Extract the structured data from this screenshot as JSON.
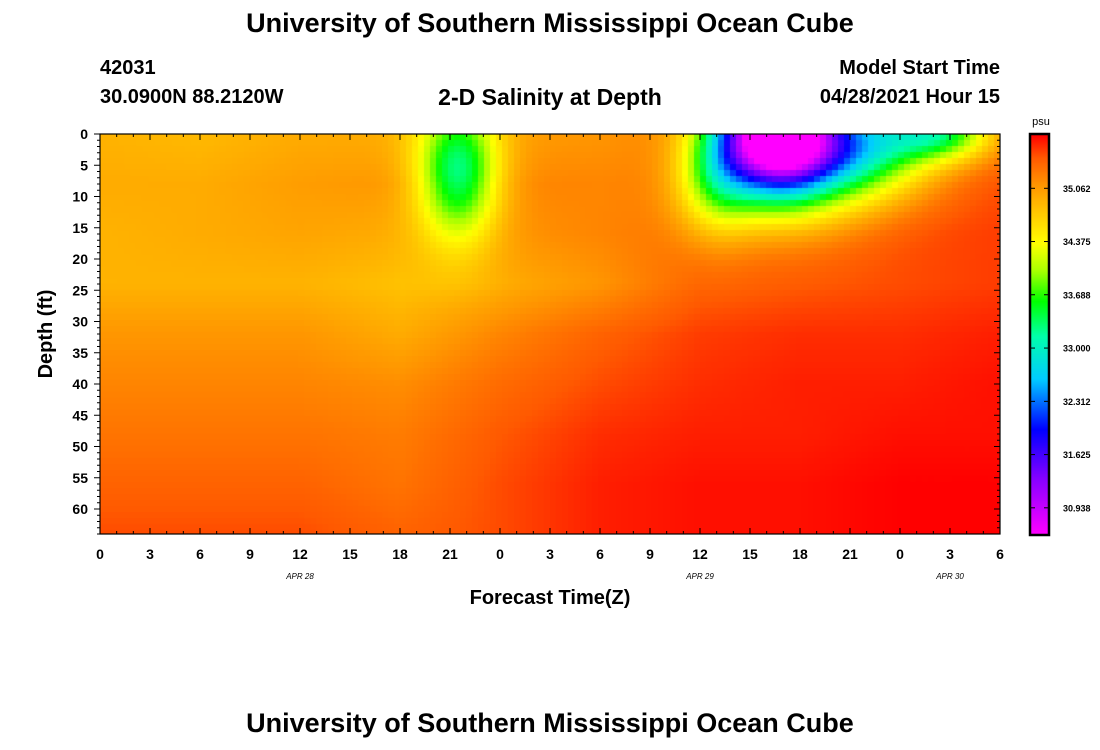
{
  "header": {
    "title": "University of Southern Mississippi Ocean Cube",
    "station_id": "42031",
    "station_coords": "30.0900N  88.2120W",
    "chart_title": "2-D Salinity at Depth",
    "model_start_label": "Model Start Time",
    "model_start_time": "04/28/2021 Hour 15"
  },
  "footer": {
    "title": "University of Southern Mississippi Ocean Cube"
  },
  "chart_data": {
    "type": "heatmap",
    "title": "2-D Salinity at Depth",
    "xlabel": "Forecast Time(Z)",
    "ylabel": "Depth (ft)",
    "x_unit": "hours since 04/28 00Z",
    "xlim": [
      0,
      54
    ],
    "x_ticks": [
      0,
      3,
      6,
      9,
      12,
      15,
      18,
      21,
      24,
      27,
      30,
      33,
      36,
      39,
      42,
      45,
      48,
      51,
      54
    ],
    "x_tick_labels": [
      "0",
      "3",
      "6",
      "9",
      "12",
      "15",
      "18",
      "21",
      "0",
      "3",
      "6",
      "9",
      "12",
      "15",
      "18",
      "21",
      "0",
      "3",
      "6"
    ],
    "x_date_labels": [
      {
        "x": 12,
        "label": "APR 28"
      },
      {
        "x": 36,
        "label": "APR 29"
      },
      {
        "x": 51,
        "label": "APR 30"
      }
    ],
    "ylim": [
      0,
      64
    ],
    "y_inverted": true,
    "y_ticks": [
      0,
      5,
      10,
      15,
      20,
      25,
      30,
      35,
      40,
      45,
      50,
      55,
      60
    ],
    "colorbar": {
      "unit_label": "psu",
      "min": 30.6,
      "max": 35.75,
      "tick_values": [
        35.062,
        34.375,
        33.688,
        33.0,
        32.312,
        31.625,
        30.938
      ],
      "tick_labels": [
        "35.062",
        "34.375",
        "33.688",
        "33.000",
        "32.312",
        "31.625",
        "30.938"
      ],
      "color_stops": [
        {
          "value": 30.6,
          "color": "#ff00ff"
        },
        {
          "value": 31.3,
          "color": "#8800ff"
        },
        {
          "value": 31.95,
          "color": "#0000ff"
        },
        {
          "value": 32.6,
          "color": "#00ccff"
        },
        {
          "value": 33.15,
          "color": "#00ffaa"
        },
        {
          "value": 33.6,
          "color": "#00ff00"
        },
        {
          "value": 34.0,
          "color": "#aaff00"
        },
        {
          "value": 34.35,
          "color": "#ffff00"
        },
        {
          "value": 34.75,
          "color": "#ffc800"
        },
        {
          "value": 35.1,
          "color": "#ff9600"
        },
        {
          "value": 35.45,
          "color": "#ff5a00"
        },
        {
          "value": 35.75,
          "color": "#ff0000"
        }
      ]
    },
    "grid_hours": [
      0,
      6,
      12,
      18,
      24,
      30,
      36,
      42,
      48,
      54
    ],
    "grid_depths": [
      0,
      8,
      16,
      24,
      32,
      40,
      48,
      56,
      64
    ],
    "salinity": [
      [
        34.9,
        34.95,
        34.9,
        34.9,
        35.1,
        35.2,
        35.3,
        35.4,
        35.5
      ],
      [
        34.85,
        34.95,
        34.95,
        34.9,
        35.1,
        35.2,
        35.3,
        35.4,
        35.5
      ],
      [
        34.95,
        35.05,
        35.0,
        34.9,
        35.1,
        35.2,
        35.3,
        35.4,
        35.5
      ],
      [
        34.95,
        35.1,
        34.95,
        34.8,
        34.95,
        35.15,
        35.25,
        35.3,
        35.4
      ],
      [
        35.05,
        35.2,
        35.1,
        34.95,
        35.2,
        35.35,
        35.45,
        35.5,
        35.5
      ],
      [
        35.1,
        35.2,
        35.2,
        35.1,
        35.4,
        35.5,
        35.6,
        35.65,
        35.65
      ],
      [
        35.25,
        35.3,
        35.35,
        35.4,
        35.55,
        35.6,
        35.65,
        35.7,
        35.7
      ],
      [
        35.25,
        35.3,
        35.4,
        35.45,
        35.6,
        35.65,
        35.65,
        35.7,
        35.7
      ],
      [
        35.3,
        35.4,
        35.5,
        35.5,
        35.6,
        35.65,
        35.7,
        35.75,
        35.75
      ],
      [
        35.4,
        35.5,
        35.55,
        35.55,
        35.65,
        35.7,
        35.7,
        35.75,
        35.75
      ]
    ],
    "features": [
      {
        "hour": 21.5,
        "depth": 6,
        "value_delta": -1.85,
        "sigma_hours": 1.7,
        "sigma_depth": 7.5
      },
      {
        "hour": 40.5,
        "depth": 0,
        "value_delta": -5.1,
        "sigma_hours": 2.3,
        "sigma_depth": 6.0
      },
      {
        "hour": 45.0,
        "depth": 2,
        "value_delta": -2.4,
        "sigma_hours": 3.2,
        "sigma_depth": 5.5
      },
      {
        "hour": 37.0,
        "depth": 6,
        "value_delta": -1.2,
        "sigma_hours": 1.6,
        "sigma_depth": 6.5
      },
      {
        "hour": 50.5,
        "depth": 0,
        "value_delta": -1.6,
        "sigma_hours": 2.2,
        "sigma_depth": 3.0
      },
      {
        "hour": 41.0,
        "depth": 10,
        "value_delta": -0.7,
        "sigma_hours": 3.5,
        "sigma_depth": 5.0
      }
    ]
  }
}
